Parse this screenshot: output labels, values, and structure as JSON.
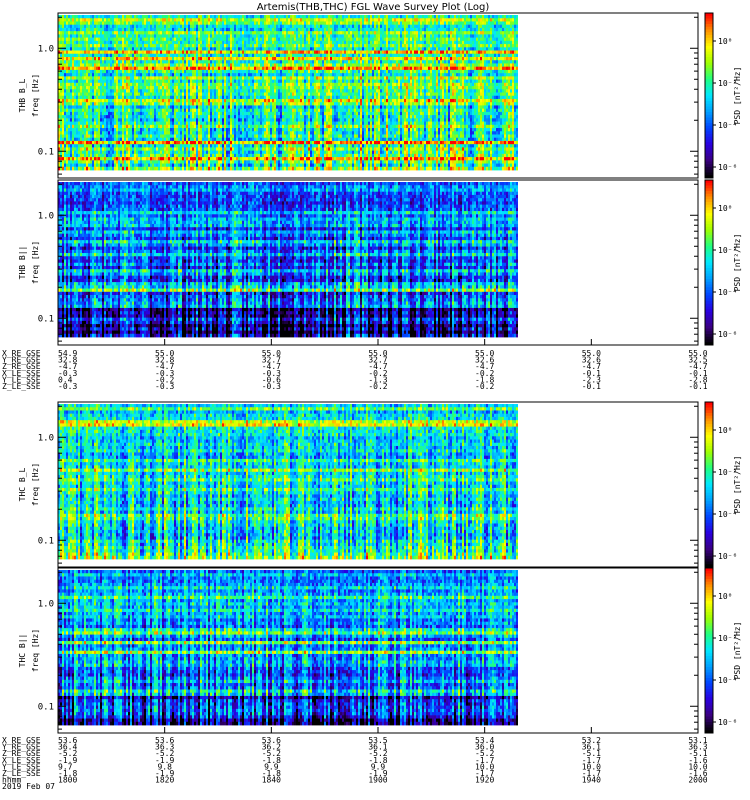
{
  "title": "Artemis(THB,THC) FGL Wave Survey Plot (Log)",
  "colormap": [
    "#000000",
    "#3a0080",
    "#2a00e0",
    "#0044ff",
    "#00a0ff",
    "#00e8ff",
    "#20ff80",
    "#a0ff00",
    "#ffff00",
    "#ff9000",
    "#ff0000"
  ],
  "chart_data": [
    {
      "type": "heatmap",
      "name": "THB B_L",
      "ylabel_line1": "THB B_L",
      "ylabel_line2": "freq [Hz]",
      "yscale": "log",
      "ylim": [
        0.055,
        2.2
      ],
      "yticks": [
        "1.0",
        "0.1"
      ],
      "colorbar_label": "PSD [nT²/Hz]",
      "colorbar_ticks": [
        "10⁰",
        "10⁻²",
        "10⁻⁴",
        "10⁻⁶"
      ],
      "seed": 11,
      "bias": 0.18,
      "data_fraction": 0.72
    },
    {
      "type": "heatmap",
      "name": "THB B_ll",
      "ylabel_line1": "THB B||",
      "ylabel_line2": "freq [Hz]",
      "yscale": "log",
      "ylim": [
        0.055,
        2.2
      ],
      "yticks": [
        "1.0",
        "0.1"
      ],
      "colorbar_label": "PSD [nT²/Hz]",
      "colorbar_ticks": [
        "10⁰",
        "10⁻²",
        "10⁻⁴",
        "10⁻⁶"
      ],
      "seed": 23,
      "bias": -0.05,
      "data_fraction": 0.72
    },
    {
      "type": "heatmap",
      "name": "THC B_L",
      "ylabel_line1": "THC B_L",
      "ylabel_line2": "freq [Hz]",
      "yscale": "log",
      "ylim": [
        0.055,
        2.2
      ],
      "yticks": [
        "1.0",
        "0.1"
      ],
      "colorbar_label": "PSD [nT²/Hz]",
      "colorbar_ticks": [
        "10⁰",
        "10⁻²",
        "10⁻⁴",
        "10⁻⁶"
      ],
      "seed": 37,
      "bias": 0.12,
      "data_fraction": 0.72
    },
    {
      "type": "heatmap",
      "name": "THC B_ll",
      "ylabel_line1": "THC B||",
      "ylabel_line2": "freq [Hz]",
      "yscale": "log",
      "ylim": [
        0.055,
        2.2
      ],
      "yticks": [
        "1.0",
        "0.1"
      ],
      "colorbar_label": "PSD [nT²/Hz]",
      "colorbar_ticks": [
        "10⁰",
        "10⁻²",
        "10⁻⁴",
        "10⁻⁶"
      ],
      "seed": 51,
      "bias": -0.02,
      "data_fraction": 0.72
    }
  ],
  "ephem_thb": {
    "labels": [
      "X_RE_GSE",
      "Y_RE_GSE",
      "Z_RE_GSE",
      "X_LE_SSE",
      "Y_LE_SSE",
      "Z_LE_SSE"
    ],
    "columns": [
      [
        "54.9",
        "32.8",
        "-4.7",
        "-0.3",
        "0.4",
        "-0.3"
      ],
      [
        "55.0",
        "32.8",
        "-4.7",
        "-0.3",
        "-0.2",
        "-0.3"
      ],
      [
        "55.0",
        "32.7",
        "-4.7",
        "-0.3",
        "-0.6",
        "-0.3"
      ],
      [
        "55.0",
        "32.7",
        "-4.7",
        "-0.2",
        "-1.3",
        "-0.2"
      ],
      [
        "55.0",
        "32.6",
        "-4.7",
        "-0.2",
        "-1.8",
        "-0.2"
      ],
      [
        "55.0",
        "32.6",
        "-4.7",
        "-0.1",
        "-2.3",
        "-0.1"
      ],
      [
        "55.0",
        "32.5",
        "-4.7",
        "-0.1",
        "-2.8",
        "-0.1"
      ]
    ]
  },
  "ephem_thc": {
    "labels": [
      "X_RE_GSE",
      "Y_RE_GSE",
      "Z_RE_GSE",
      "X_LE_SSE",
      "Y_LE_SSE",
      "Z_LE_SSE"
    ],
    "columns": [
      [
        "53.6",
        "36.4",
        "-5.2",
        "-1.9",
        "9.7",
        "-1.8"
      ],
      [
        "53.6",
        "36.3",
        "-5.2",
        "-1.9",
        "9.8",
        "-1.9"
      ],
      [
        "53.6",
        "36.2",
        "-5.2",
        "-1.8",
        "9.9",
        "-1.8"
      ],
      [
        "53.5",
        "36.1",
        "-5.2",
        "-1.8",
        "9.9",
        "-1.9"
      ],
      [
        "53.4",
        "36.0",
        "-5.2",
        "-1.7",
        "10.0",
        "-1.7"
      ],
      [
        "53.2",
        "36.1",
        "-5.1",
        "-1.7",
        "10.0",
        "-1.7"
      ],
      [
        "53.1",
        "36.3",
        "-5.1",
        "-1.6",
        "10.0",
        "-1.6"
      ]
    ]
  },
  "time_axis": {
    "label": "hhmm",
    "date": "2019 Feb 07",
    "ticks": [
      "1800",
      "1820",
      "1840",
      "1900",
      "1920",
      "1940",
      "2000"
    ]
  }
}
